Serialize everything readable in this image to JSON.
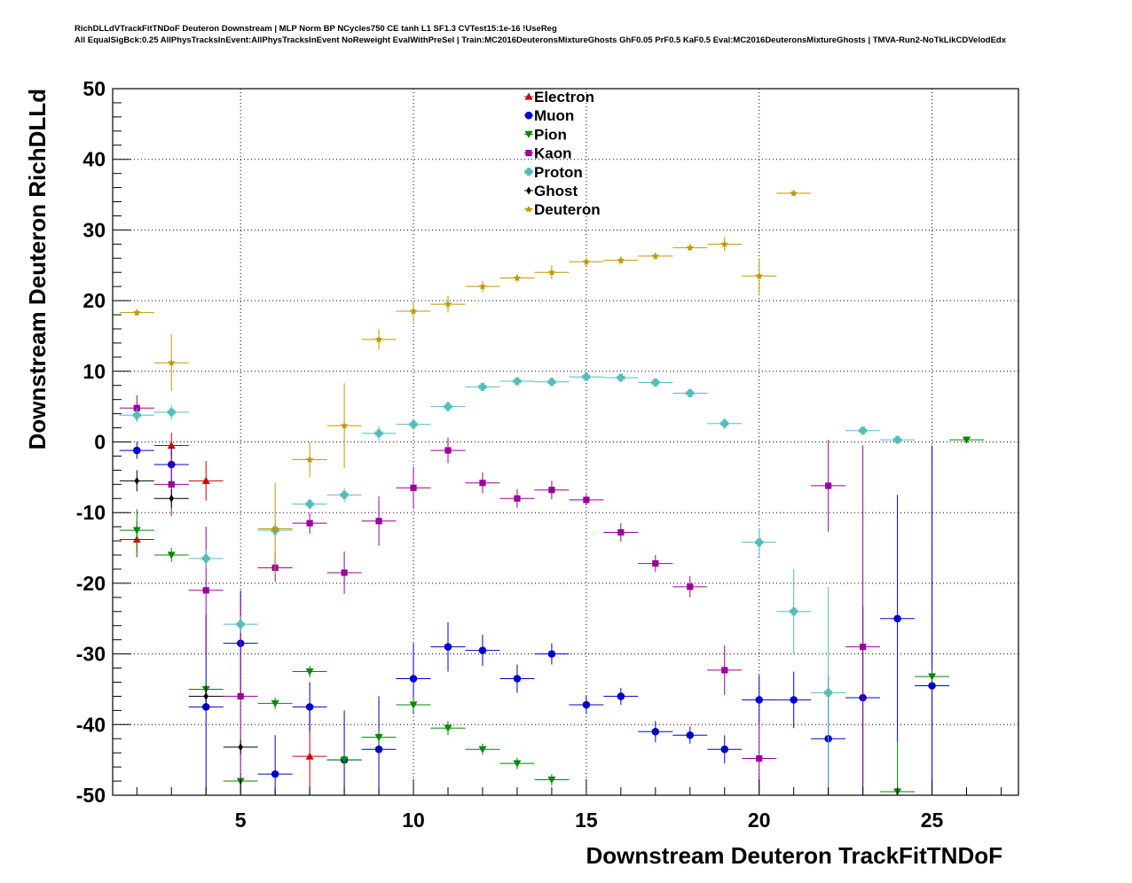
{
  "header": {
    "line1": "RichDLLdVTrackFitTNDoF Deuteron Downstream | MLP Norm BP NCycles750 CE tanh L1 SF1.3 CVTest15:1e-16 !UseReg",
    "line2": "All EqualSigBck:0.25 AllPhysTracksInEvent:AllPhysTracksInEvent NoReweight EvalWithPreSel | Train:MC2016DeuteronsMixtureGhosts GhF0.05 PrF0.5 KaF0.5 Eval:MC2016DeuteronsMixtureGhosts | TMVA-Run2-NoTkLikCDVelodEdx"
  },
  "chart_data": {
    "type": "scatter",
    "title": "",
    "xlabel": "Downstream Deuteron TrackFitTNDoF",
    "ylabel": "Downstream Deuteron RichDLLd",
    "xlim": [
      1.3,
      27.5
    ],
    "ylim": [
      -50,
      50
    ],
    "xticks": [
      5,
      10,
      15,
      20,
      25
    ],
    "yticks": [
      -50,
      -40,
      -30,
      -20,
      -10,
      0,
      10,
      20,
      30,
      40,
      50
    ],
    "grid": true,
    "legend_position": "top-center",
    "series": [
      {
        "name": "Electron",
        "color": "#cc0000",
        "marker": "triangle-up",
        "points": [
          {
            "x": 2,
            "y": -13.8,
            "err": 2.5
          },
          {
            "x": 3,
            "y": -0.5,
            "err": 1.8
          },
          {
            "x": 4,
            "y": -5.5,
            "err": 2.8
          },
          {
            "x": 7,
            "y": -44.5,
            "err": 7
          }
        ]
      },
      {
        "name": "Muon",
        "color": "#0000cc",
        "marker": "circle",
        "points": [
          {
            "x": 2,
            "y": -1.2,
            "err": 1.2
          },
          {
            "x": 3,
            "y": -3.2,
            "err": 2.5
          },
          {
            "x": 4,
            "y": -37.5,
            "err": 13
          },
          {
            "x": 5,
            "y": -28.5,
            "err": 7.5
          },
          {
            "x": 6,
            "y": -47,
            "err": 5.5
          },
          {
            "x": 7,
            "y": -37.5,
            "err": 3.5
          },
          {
            "x": 8,
            "y": -45,
            "err": 7
          },
          {
            "x": 9,
            "y": -43.5,
            "err": 7.5
          },
          {
            "x": 10,
            "y": -33.5,
            "err": 5
          },
          {
            "x": 11,
            "y": -29,
            "err": 3.5
          },
          {
            "x": 12,
            "y": -29.5,
            "err": 2.2
          },
          {
            "x": 13,
            "y": -33.5,
            "err": 2
          },
          {
            "x": 14,
            "y": -30,
            "err": 1.5
          },
          {
            "x": 15,
            "y": -37.2,
            "err": 1.3
          },
          {
            "x": 16,
            "y": -36,
            "err": 1.2
          },
          {
            "x": 17,
            "y": -41,
            "err": 1.5
          },
          {
            "x": 18,
            "y": -41.5,
            "err": 1.2
          },
          {
            "x": 19,
            "y": -43.5,
            "err": 2
          },
          {
            "x": 20,
            "y": -36.5,
            "err": 3.5
          },
          {
            "x": 21,
            "y": -36.5,
            "err": 4
          },
          {
            "x": 22,
            "y": -42,
            "err": 9
          },
          {
            "x": 23,
            "y": -36.2,
            "err": 13
          },
          {
            "x": 24,
            "y": -25,
            "err": 17.5
          },
          {
            "x": 25,
            "y": -34.5,
            "err": 34
          }
        ]
      },
      {
        "name": "Pion",
        "color": "#008800",
        "marker": "triangle-down",
        "points": [
          {
            "x": 2,
            "y": -12.5,
            "err": 3
          },
          {
            "x": 3,
            "y": -16,
            "err": 1
          },
          {
            "x": 4,
            "y": -35,
            "err": 1
          },
          {
            "x": 5,
            "y": -48,
            "err": 1
          },
          {
            "x": 6,
            "y": -37,
            "err": 0.8
          },
          {
            "x": 7,
            "y": -32.5,
            "err": 0.8
          },
          {
            "x": 8,
            "y": -45,
            "err": 1
          },
          {
            "x": 9,
            "y": -41.8,
            "err": 1
          },
          {
            "x": 10,
            "y": -37.2,
            "err": 1
          },
          {
            "x": 11,
            "y": -40.5,
            "err": 1
          },
          {
            "x": 12,
            "y": -43.5,
            "err": 0.8
          },
          {
            "x": 13,
            "y": -45.5,
            "err": 0.8
          },
          {
            "x": 14,
            "y": -47.8,
            "err": 0.8
          },
          {
            "x": 24,
            "y": -49.5,
            "err": 7
          },
          {
            "x": 25,
            "y": -33.2,
            "err": 1
          },
          {
            "x": 26,
            "y": 0.3,
            "err": 0.5
          }
        ]
      },
      {
        "name": "Kaon",
        "color": "#990099",
        "marker": "square",
        "points": [
          {
            "x": 2,
            "y": 4.8,
            "err": 1.8
          },
          {
            "x": 3,
            "y": -6,
            "err": 4.5
          },
          {
            "x": 4,
            "y": -21,
            "err": 9
          },
          {
            "x": 5,
            "y": -36,
            "err": 14
          },
          {
            "x": 6,
            "y": -17.8,
            "err": 2
          },
          {
            "x": 7,
            "y": -11.5,
            "err": 1.5
          },
          {
            "x": 8,
            "y": -18.5,
            "err": 3
          },
          {
            "x": 9,
            "y": -11.2,
            "err": 3.5
          },
          {
            "x": 10,
            "y": -6.5,
            "err": 3
          },
          {
            "x": 11,
            "y": -1.2,
            "err": 1.8
          },
          {
            "x": 12,
            "y": -5.8,
            "err": 1.5
          },
          {
            "x": 13,
            "y": -8,
            "err": 1.3
          },
          {
            "x": 14,
            "y": -6.8,
            "err": 1.3
          },
          {
            "x": 15,
            "y": -8.2,
            "err": 0.8
          },
          {
            "x": 16,
            "y": -12.8,
            "err": 1.3
          },
          {
            "x": 17,
            "y": -17.2,
            "err": 1.2
          },
          {
            "x": 18,
            "y": -20.5,
            "err": 1.5
          },
          {
            "x": 19,
            "y": -32.3,
            "err": 3.5
          },
          {
            "x": 20,
            "y": -44.8,
            "err": 5
          },
          {
            "x": 22,
            "y": -6.2,
            "err": 6.5
          },
          {
            "x": 23,
            "y": -29,
            "err": 28.5
          }
        ]
      },
      {
        "name": "Proton",
        "color": "#55bbbb",
        "marker": "cross",
        "points": [
          {
            "x": 2,
            "y": 3.8,
            "err": 1
          },
          {
            "x": 3,
            "y": 4.2,
            "err": 1
          },
          {
            "x": 4,
            "y": -16.5,
            "err": 1.3
          },
          {
            "x": 5,
            "y": -25.8,
            "err": 1.2
          },
          {
            "x": 6,
            "y": -12.5,
            "err": 1
          },
          {
            "x": 7,
            "y": -8.8,
            "err": 0.8
          },
          {
            "x": 8,
            "y": -7.5,
            "err": 1
          },
          {
            "x": 9,
            "y": 1.2,
            "err": 1
          },
          {
            "x": 10,
            "y": 2.5,
            "err": 0.8
          },
          {
            "x": 11,
            "y": 5,
            "err": 0.8
          },
          {
            "x": 12,
            "y": 7.8,
            "err": 0.6
          },
          {
            "x": 13,
            "y": 8.6,
            "err": 0.5
          },
          {
            "x": 14,
            "y": 8.5,
            "err": 0.5
          },
          {
            "x": 15,
            "y": 9.2,
            "err": 0.5
          },
          {
            "x": 16,
            "y": 9.1,
            "err": 0.5
          },
          {
            "x": 17,
            "y": 8.4,
            "err": 0.5
          },
          {
            "x": 18,
            "y": 6.9,
            "err": 0.5
          },
          {
            "x": 19,
            "y": 2.6,
            "err": 0.8
          },
          {
            "x": 20,
            "y": -14.2,
            "err": 2
          },
          {
            "x": 21,
            "y": -24,
            "err": 6
          },
          {
            "x": 22,
            "y": -35.5,
            "err": 15
          },
          {
            "x": 23,
            "y": 1.6,
            "err": 0.5
          },
          {
            "x": 24,
            "y": 0.3,
            "err": 0.3
          }
        ]
      },
      {
        "name": "Ghost",
        "color": "#000000",
        "marker": "diamond",
        "points": [
          {
            "x": 2,
            "y": -5.5,
            "err": 1.5
          },
          {
            "x": 3,
            "y": -8,
            "err": 1.3
          },
          {
            "x": 4,
            "y": -36,
            "err": 1.5
          },
          {
            "x": 5,
            "y": -43.2,
            "err": 1
          }
        ]
      },
      {
        "name": "Deuteron",
        "color": "#bb9900",
        "marker": "star",
        "points": [
          {
            "x": 2,
            "y": 18.3,
            "err": 0.5
          },
          {
            "x": 3,
            "y": 11.2,
            "err": 4
          },
          {
            "x": 6,
            "y": -12.3,
            "err": 6.5
          },
          {
            "x": 7,
            "y": -2.5,
            "err": 2.5
          },
          {
            "x": 8,
            "y": 2.3,
            "err": 6
          },
          {
            "x": 9,
            "y": 14.5,
            "err": 1.5
          },
          {
            "x": 10,
            "y": 18.5,
            "err": 1.5
          },
          {
            "x": 11,
            "y": 19.5,
            "err": 1.2
          },
          {
            "x": 12,
            "y": 22,
            "err": 0.8
          },
          {
            "x": 13,
            "y": 23.2,
            "err": 0.6
          },
          {
            "x": 14,
            "y": 24,
            "err": 1
          },
          {
            "x": 15,
            "y": 25.5,
            "err": 0.6
          },
          {
            "x": 16,
            "y": 25.7,
            "err": 0.6
          },
          {
            "x": 17,
            "y": 26.3,
            "err": 0.5
          },
          {
            "x": 18,
            "y": 27.5,
            "err": 0.5
          },
          {
            "x": 19,
            "y": 28,
            "err": 1
          },
          {
            "x": 20,
            "y": 23.5,
            "err": 2.5
          },
          {
            "x": 21,
            "y": 35.2,
            "err": 0.4
          }
        ]
      }
    ]
  }
}
